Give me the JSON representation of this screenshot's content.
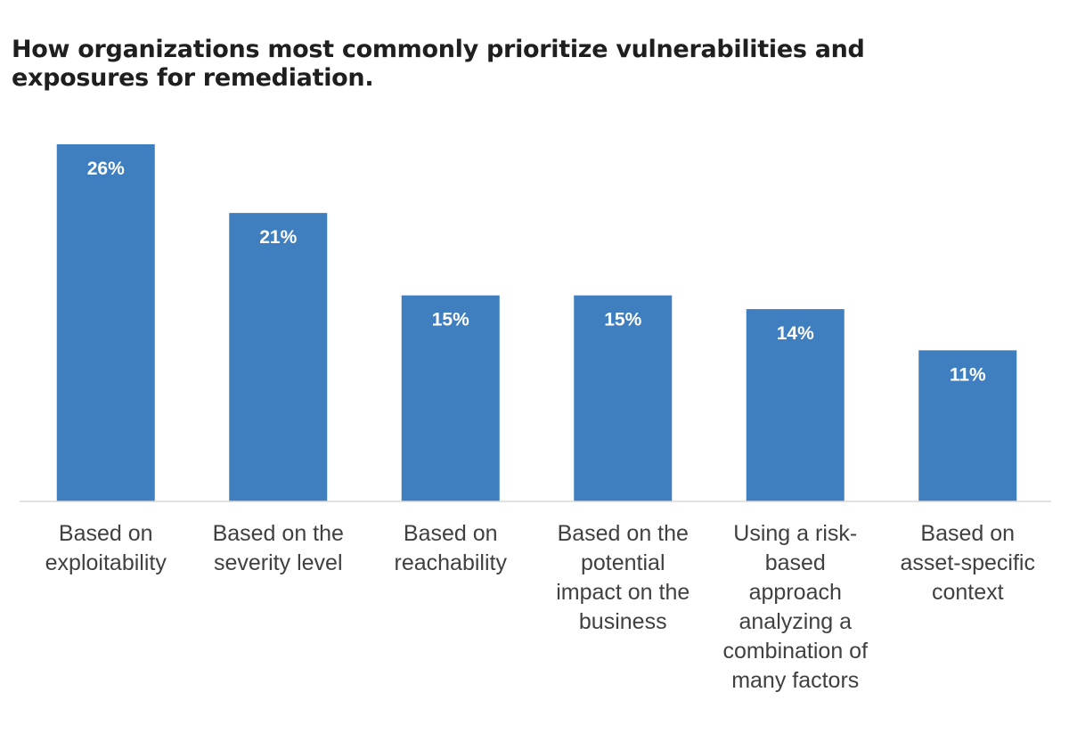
{
  "chart_data": {
    "type": "bar",
    "title": "How organizations most commonly prioritize vulnerabilities and exposures for remediation.",
    "categories": [
      [
        "Based on",
        "exploitability"
      ],
      [
        "Based on the",
        "severity level"
      ],
      [
        "Based on",
        "reachability"
      ],
      [
        "Based on the",
        "potential",
        "impact on the",
        "business"
      ],
      [
        "Using a risk-",
        "based",
        "approach",
        "analyzing a",
        "combination of",
        "many factors"
      ],
      [
        "Based on",
        "asset-specific",
        "context"
      ]
    ],
    "values": [
      26,
      21,
      15,
      15,
      14,
      11
    ],
    "data_labels": [
      "26%",
      "21%",
      "15%",
      "15%",
      "14%",
      "11%"
    ],
    "ylim": [
      0,
      26
    ],
    "grid": false,
    "legend": "none",
    "bar_color": "#3F7FBF",
    "axis_color": "#D9D9D9"
  }
}
